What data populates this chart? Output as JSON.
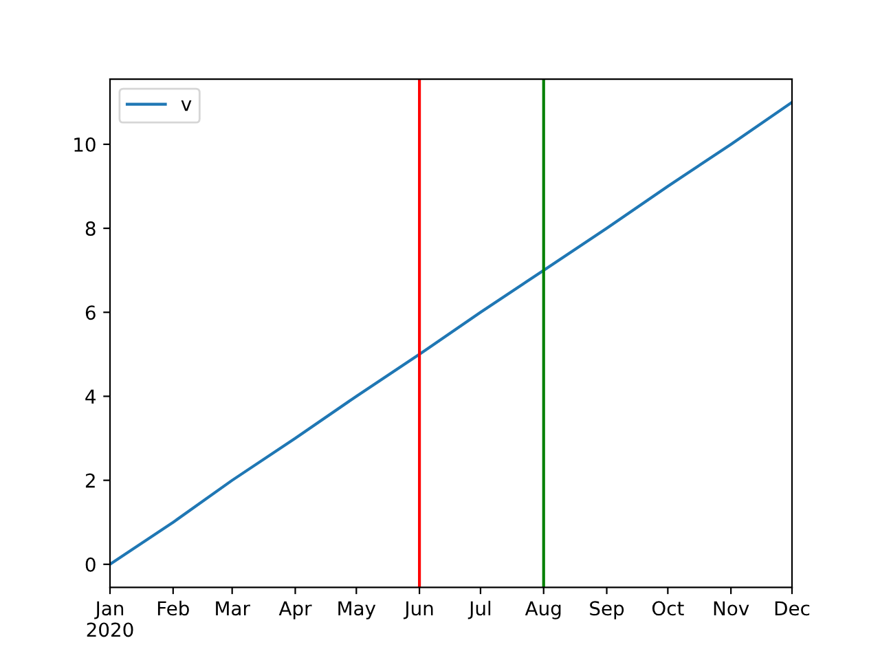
{
  "chart_data": {
    "type": "line",
    "x": [
      "2020-01",
      "2020-02",
      "2020-03",
      "2020-04",
      "2020-05",
      "2020-06",
      "2020-07",
      "2020-08",
      "2020-09",
      "2020-10",
      "2020-11",
      "2020-12"
    ],
    "series": [
      {
        "name": "v",
        "color": "#1f77b4",
        "values": [
          0,
          1,
          2,
          3,
          4,
          5,
          6,
          7,
          8,
          9,
          10,
          11
        ]
      }
    ],
    "xlim": [
      "2020-01",
      "2020-12"
    ],
    "xticks": [
      {
        "value": "2020-01",
        "label": "Jan\n2020"
      },
      {
        "value": "2020-02",
        "label": "Feb"
      },
      {
        "value": "2020-03",
        "label": "Mar"
      },
      {
        "value": "2020-04",
        "label": "Apr"
      },
      {
        "value": "2020-05",
        "label": "May"
      },
      {
        "value": "2020-06",
        "label": "Jun"
      },
      {
        "value": "2020-07",
        "label": "Jul"
      },
      {
        "value": "2020-08",
        "label": "Aug"
      },
      {
        "value": "2020-09",
        "label": "Sep"
      },
      {
        "value": "2020-10",
        "label": "Oct"
      },
      {
        "value": "2020-11",
        "label": "Nov"
      },
      {
        "value": "2020-12",
        "label": "Dec"
      }
    ],
    "ylim": [
      -0.55,
      11.55
    ],
    "yticks": [
      0,
      2,
      4,
      6,
      8,
      10
    ],
    "ref_lines": [
      {
        "axis": "x",
        "value": "2020-06",
        "color": "#ff0000"
      },
      {
        "axis": "x",
        "value": "2020-08",
        "color": "#008000"
      }
    ],
    "grid": false,
    "legend": "top left"
  }
}
